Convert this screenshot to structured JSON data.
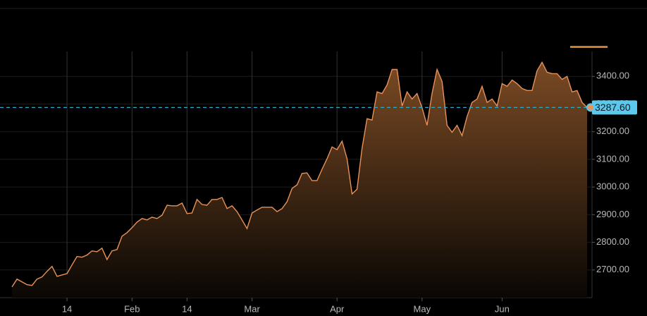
{
  "chart_data": {
    "type": "area",
    "color": "#e8925a",
    "categories": [
      null,
      null,
      null,
      null,
      null,
      null,
      null,
      null,
      null,
      null,
      null,
      "14",
      null,
      null,
      null,
      null,
      null,
      null,
      null,
      null,
      null,
      null,
      null,
      null,
      "Feb",
      null,
      null,
      null,
      null,
      null,
      null,
      null,
      null,
      null,
      null,
      "14",
      null,
      null,
      null,
      null,
      null,
      null,
      null,
      null,
      null,
      null,
      null,
      null,
      "Mar",
      null,
      null,
      null,
      null,
      null,
      null,
      null,
      null,
      null,
      null,
      null,
      null,
      null,
      null,
      null,
      null,
      "Apr",
      null,
      null,
      null,
      null,
      null,
      null,
      null,
      null,
      null,
      null,
      null,
      null,
      null,
      null,
      null,
      null,
      "May",
      null,
      null,
      null,
      null,
      null,
      null,
      null,
      null,
      null,
      null,
      null,
      null,
      null,
      null,
      null,
      "Jun",
      null,
      null,
      null,
      null,
      null,
      null,
      null,
      null,
      null,
      null,
      null,
      null,
      null,
      null,
      null,
      null,
      null
    ],
    "values": [
      2639,
      2667,
      2657,
      2647,
      2644,
      2667,
      2675,
      2695,
      2713,
      2677,
      2682,
      2687,
      2718,
      2749,
      2746,
      2754,
      2769,
      2766,
      2779,
      2738,
      2769,
      2774,
      2822,
      2835,
      2853,
      2873,
      2886,
      2881,
      2891,
      2886,
      2898,
      2934,
      2932,
      2932,
      2942,
      2904,
      2906,
      2955,
      2937,
      2934,
      2955,
      2955,
      2962,
      2922,
      2932,
      2911,
      2881,
      2850,
      2906,
      2917,
      2927,
      2927,
      2927,
      2911,
      2922,
      2947,
      2995,
      3008,
      3049,
      3051,
      3023,
      3023,
      3064,
      3102,
      3145,
      3135,
      3166,
      3102,
      2975,
      2992,
      3140,
      3247,
      3242,
      3344,
      3338,
      3369,
      3425,
      3425,
      3293,
      3344,
      3318,
      3338,
      3287,
      3223,
      3338,
      3425,
      3382,
      3223,
      3198,
      3223,
      3186,
      3255,
      3306,
      3318,
      3364,
      3306,
      3318,
      3293,
      3374,
      3364,
      3387,
      3374,
      3356,
      3349,
      3349,
      3420,
      3451,
      3415,
      3410,
      3410,
      3389,
      3400,
      3344,
      3349,
      3306,
      3287.6
    ],
    "price_line": {
      "value": 3287.6,
      "label": "3287.60"
    },
    "ylim": [
      2600,
      3490
    ],
    "yticks": [
      {
        "value": 2700,
        "label": "2700.00"
      },
      {
        "value": 2800,
        "label": "2800.00"
      },
      {
        "value": 2900,
        "label": "2900.00"
      },
      {
        "value": 3000,
        "label": "3000.00"
      },
      {
        "value": 3100,
        "label": "3100.00"
      },
      {
        "value": 3200,
        "label": "3200.00"
      },
      {
        "value": 3300,
        "label": "3300.00"
      },
      {
        "value": 3400,
        "label": "3400.00"
      }
    ],
    "grid": true
  }
}
